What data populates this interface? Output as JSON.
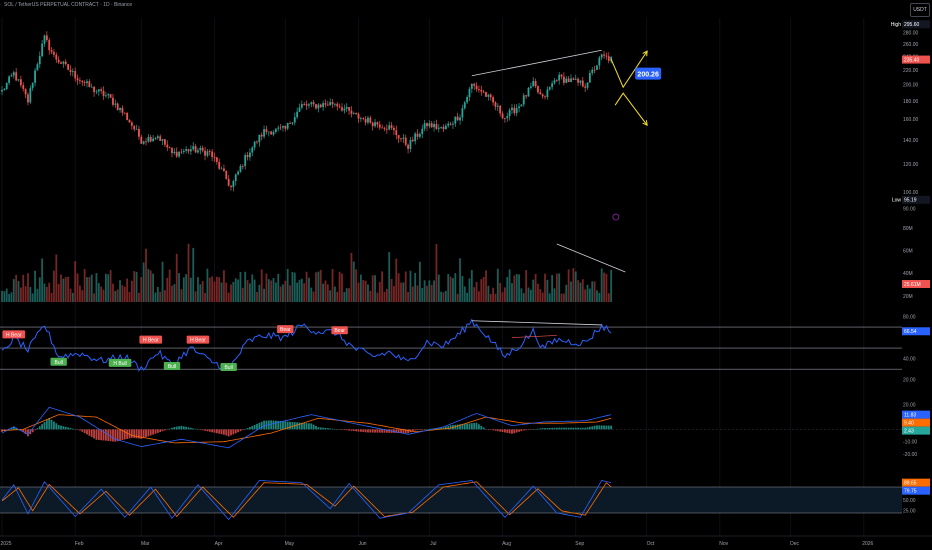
{
  "header": {
    "title": "SOL / TetherUS PERPETUAL CONTRACT · 1D · Binance",
    "currency_button": "USDT"
  },
  "colors": {
    "background": "#000000",
    "up": "#26a69a",
    "down": "#ef5350",
    "rsi_line": "#2962ff",
    "macd_line": "#2962ff",
    "signal_line": "#ff6d00",
    "stoch_k": "#2962ff",
    "stoch_d": "#ff6d00",
    "trendline": "#d1d4dc",
    "arrow": "#f5e025",
    "price_badge": "#2962ff"
  },
  "chart_data": [
    {
      "type": "candlestick",
      "title": "SOL / TetherUS PERPETUAL CONTRACT · 1D · Binance",
      "y_axis": {
        "scale": "log",
        "ticks": [
          90.0,
          100.0,
          120.0,
          140.0,
          160.0,
          180.0,
          200.0,
          220.0,
          240.0,
          260.0,
          280.0
        ],
        "range": [
          88,
          300
        ]
      },
      "x_axis": {
        "ticks": [
          "2025",
          "Feb",
          "Mar",
          "Apr",
          "May",
          "Jun",
          "Jul",
          "Aug",
          "Sep",
          "Oct",
          "Nov",
          "Dec",
          "2026"
        ]
      },
      "markers": {
        "high_label": "High",
        "high": 295.6,
        "low_label": "Low",
        "low": 95.19,
        "last": 235.4,
        "badge": "200.26"
      },
      "path_keypoints": [
        [
          "2025-01-01",
          192
        ],
        [
          "2025-01-06",
          215
        ],
        [
          "2025-01-12",
          180
        ],
        [
          "2025-01-19",
          270
        ],
        [
          "2025-01-23",
          240
        ],
        [
          "2025-02-01",
          212
        ],
        [
          "2025-02-08",
          195
        ],
        [
          "2025-02-15",
          185
        ],
        [
          "2025-02-22",
          165
        ],
        [
          "2025-03-01",
          140
        ],
        [
          "2025-03-08",
          144
        ],
        [
          "2025-03-14",
          128
        ],
        [
          "2025-03-22",
          132
        ],
        [
          "2025-03-30",
          129
        ],
        [
          "2025-04-05",
          112
        ],
        [
          "2025-04-08",
          103
        ],
        [
          "2025-04-15",
          128
        ],
        [
          "2025-04-22",
          148
        ],
        [
          "2025-05-01",
          150
        ],
        [
          "2025-05-08",
          175
        ],
        [
          "2025-05-14",
          175
        ],
        [
          "2025-05-22",
          178
        ],
        [
          "2025-05-30",
          164
        ],
        [
          "2025-06-07",
          157
        ],
        [
          "2025-06-14",
          152
        ],
        [
          "2025-06-22",
          135
        ],
        [
          "2025-06-30",
          155
        ],
        [
          "2025-07-07",
          150
        ],
        [
          "2025-07-14",
          165
        ],
        [
          "2025-07-19",
          200
        ],
        [
          "2025-07-24",
          190
        ],
        [
          "2025-08-02",
          162
        ],
        [
          "2025-08-08",
          175
        ],
        [
          "2025-08-14",
          200
        ],
        [
          "2025-08-18",
          182
        ],
        [
          "2025-08-24",
          210
        ],
        [
          "2025-08-30",
          205
        ],
        [
          "2025-09-05",
          200
        ],
        [
          "2025-09-12",
          240
        ],
        [
          "2025-09-16",
          236
        ]
      ],
      "annotations": [
        "rising trendline across highs",
        "projected up/down arrows from last price"
      ]
    },
    {
      "type": "bar",
      "title": "Volume",
      "y_axis": {
        "ticks": [
          "80M",
          "60M",
          "40M",
          "20M"
        ]
      },
      "last_label": "25.61M",
      "annotations": [
        "falling trendline across volume peaks"
      ]
    },
    {
      "type": "line",
      "title": "RSI",
      "y_axis": {
        "ticks": [
          80.0,
          40.0,
          20.0
        ],
        "range": [
          20,
          80
        ],
        "bands": [
          70,
          30
        ]
      },
      "last_label": "66.54",
      "labels": [
        {
          "text": "H Bear",
          "date": "2025-01-06",
          "value": 63
        },
        {
          "text": "Bull",
          "date": "2025-01-25",
          "value": 37
        },
        {
          "text": "H Bull",
          "date": "2025-02-20",
          "value": 36
        },
        {
          "text": "H Bear",
          "date": "2025-03-05",
          "value": 58
        },
        {
          "text": "Bull",
          "date": "2025-03-14",
          "value": 33
        },
        {
          "text": "H Bear",
          "date": "2025-03-25",
          "value": 58
        },
        {
          "text": "Bull",
          "date": "2025-04-07",
          "value": 32
        },
        {
          "text": "Bear",
          "date": "2025-05-01",
          "value": 68
        },
        {
          "text": "Bear",
          "date": "2025-05-24",
          "value": 67
        }
      ],
      "path_keypoints": [
        [
          "2025-01-01",
          45
        ],
        [
          "2025-01-06",
          60
        ],
        [
          "2025-01-12",
          48
        ],
        [
          "2025-01-19",
          72
        ],
        [
          "2025-01-25",
          42
        ],
        [
          "2025-02-03",
          45
        ],
        [
          "2025-02-12",
          38
        ],
        [
          "2025-02-22",
          42
        ],
        [
          "2025-03-01",
          30
        ],
        [
          "2025-03-08",
          46
        ],
        [
          "2025-03-14",
          34
        ],
        [
          "2025-03-22",
          50
        ],
        [
          "2025-03-30",
          38
        ],
        [
          "2025-04-07",
          30
        ],
        [
          "2025-04-15",
          56
        ],
        [
          "2025-04-22",
          62
        ],
        [
          "2025-05-01",
          60
        ],
        [
          "2025-05-08",
          72
        ],
        [
          "2025-05-14",
          66
        ],
        [
          "2025-05-22",
          65
        ],
        [
          "2025-05-30",
          50
        ],
        [
          "2025-06-07",
          42
        ],
        [
          "2025-06-14",
          46
        ],
        [
          "2025-06-22",
          36
        ],
        [
          "2025-06-30",
          56
        ],
        [
          "2025-07-07",
          52
        ],
        [
          "2025-07-14",
          64
        ],
        [
          "2025-07-19",
          76
        ],
        [
          "2025-07-24",
          65
        ],
        [
          "2025-08-02",
          42
        ],
        [
          "2025-08-08",
          52
        ],
        [
          "2025-08-14",
          66
        ],
        [
          "2025-08-18",
          50
        ],
        [
          "2025-08-24",
          58
        ],
        [
          "2025-08-30",
          56
        ],
        [
          "2025-09-05",
          55
        ],
        [
          "2025-09-12",
          71
        ],
        [
          "2025-09-16",
          66
        ]
      ],
      "annotations": [
        "bearish divergence line across RSI highs"
      ]
    },
    {
      "type": "line",
      "title": "MACD",
      "y_axis": {
        "ticks": [
          20.0,
          -10.0,
          -20.0
        ],
        "range": [
          -25,
          30
        ]
      },
      "last_labels": [
        "11.83",
        "9.40",
        "2.43"
      ],
      "series": [
        {
          "legend": "blue",
          "path_keypoints": [
            [
              "2025-01-01",
              -3
            ],
            [
              "2025-01-06",
              2
            ],
            [
              "2025-01-12",
              -4
            ],
            [
              "2025-01-21",
              18
            ],
            [
              "2025-02-03",
              10
            ],
            [
              "2025-02-18",
              -8
            ],
            [
              "2025-03-01",
              -14
            ],
            [
              "2025-03-18",
              -8
            ],
            [
              "2025-04-07",
              -15
            ],
            [
              "2025-04-22",
              3
            ],
            [
              "2025-05-12",
              12
            ],
            [
              "2025-06-01",
              4
            ],
            [
              "2025-06-22",
              -4
            ],
            [
              "2025-07-07",
              2
            ],
            [
              "2025-07-21",
              13
            ],
            [
              "2025-08-05",
              3
            ],
            [
              "2025-08-18",
              6
            ],
            [
              "2025-09-05",
              7
            ],
            [
              "2025-09-16",
              12
            ]
          ]
        },
        {
          "legend": "orange",
          "path_keypoints": [
            [
              "2025-01-01",
              -1
            ],
            [
              "2025-01-10",
              0
            ],
            [
              "2025-01-25",
              12
            ],
            [
              "2025-02-10",
              10
            ],
            [
              "2025-02-25",
              -5
            ],
            [
              "2025-03-15",
              -11
            ],
            [
              "2025-04-05",
              -10
            ],
            [
              "2025-04-25",
              -3
            ],
            [
              "2025-05-15",
              9
            ],
            [
              "2025-06-05",
              5
            ],
            [
              "2025-06-25",
              -2
            ],
            [
              "2025-07-10",
              1
            ],
            [
              "2025-07-25",
              10
            ],
            [
              "2025-08-10",
              5
            ],
            [
              "2025-08-25",
              5
            ],
            [
              "2025-09-10",
              6
            ],
            [
              "2025-09-16",
              9
            ]
          ]
        }
      ]
    },
    {
      "type": "line",
      "title": "Stochastic",
      "y_axis": {
        "ticks": [
          75.0,
          50.0,
          25.0
        ],
        "range": [
          0,
          100
        ],
        "bands": [
          80,
          20
        ]
      },
      "last_labels": [
        "89.65",
        "79.75"
      ],
      "series": [
        {
          "legend": "blue",
          "path_keypoints": [
            [
              "2025-01-01",
              50
            ],
            [
              "2025-01-06",
              85
            ],
            [
              "2025-01-12",
              18
            ],
            [
              "2025-01-19",
              92
            ],
            [
              "2025-02-01",
              12
            ],
            [
              "2025-02-12",
              75
            ],
            [
              "2025-02-22",
              10
            ],
            [
              "2025-03-05",
              80
            ],
            [
              "2025-03-14",
              8
            ],
            [
              "2025-03-25",
              85
            ],
            [
              "2025-04-07",
              5
            ],
            [
              "2025-04-20",
              95
            ],
            [
              "2025-05-08",
              90
            ],
            [
              "2025-05-20",
              30
            ],
            [
              "2025-05-28",
              88
            ],
            [
              "2025-06-10",
              8
            ],
            [
              "2025-06-22",
              20
            ],
            [
              "2025-07-05",
              85
            ],
            [
              "2025-07-19",
              95
            ],
            [
              "2025-08-02",
              10
            ],
            [
              "2025-08-14",
              82
            ],
            [
              "2025-08-24",
              20
            ],
            [
              "2025-09-03",
              10
            ],
            [
              "2025-09-12",
              95
            ],
            [
              "2025-09-16",
              90
            ]
          ]
        },
        {
          "legend": "orange",
          "path_keypoints": [
            [
              "2025-01-01",
              48
            ],
            [
              "2025-01-08",
              78
            ],
            [
              "2025-01-14",
              25
            ],
            [
              "2025-01-21",
              86
            ],
            [
              "2025-02-03",
              18
            ],
            [
              "2025-02-14",
              70
            ],
            [
              "2025-02-24",
              15
            ],
            [
              "2025-03-07",
              75
            ],
            [
              "2025-03-16",
              12
            ],
            [
              "2025-03-27",
              80
            ],
            [
              "2025-04-09",
              10
            ],
            [
              "2025-04-22",
              90
            ],
            [
              "2025-05-10",
              86
            ],
            [
              "2025-05-22",
              36
            ],
            [
              "2025-05-30",
              82
            ],
            [
              "2025-06-12",
              12
            ],
            [
              "2025-06-24",
              22
            ],
            [
              "2025-07-07",
              80
            ],
            [
              "2025-07-21",
              92
            ],
            [
              "2025-08-04",
              16
            ],
            [
              "2025-08-16",
              76
            ],
            [
              "2025-08-26",
              25
            ],
            [
              "2025-09-05",
              15
            ],
            [
              "2025-09-14",
              90
            ],
            [
              "2025-09-16",
              80
            ]
          ]
        }
      ]
    }
  ]
}
